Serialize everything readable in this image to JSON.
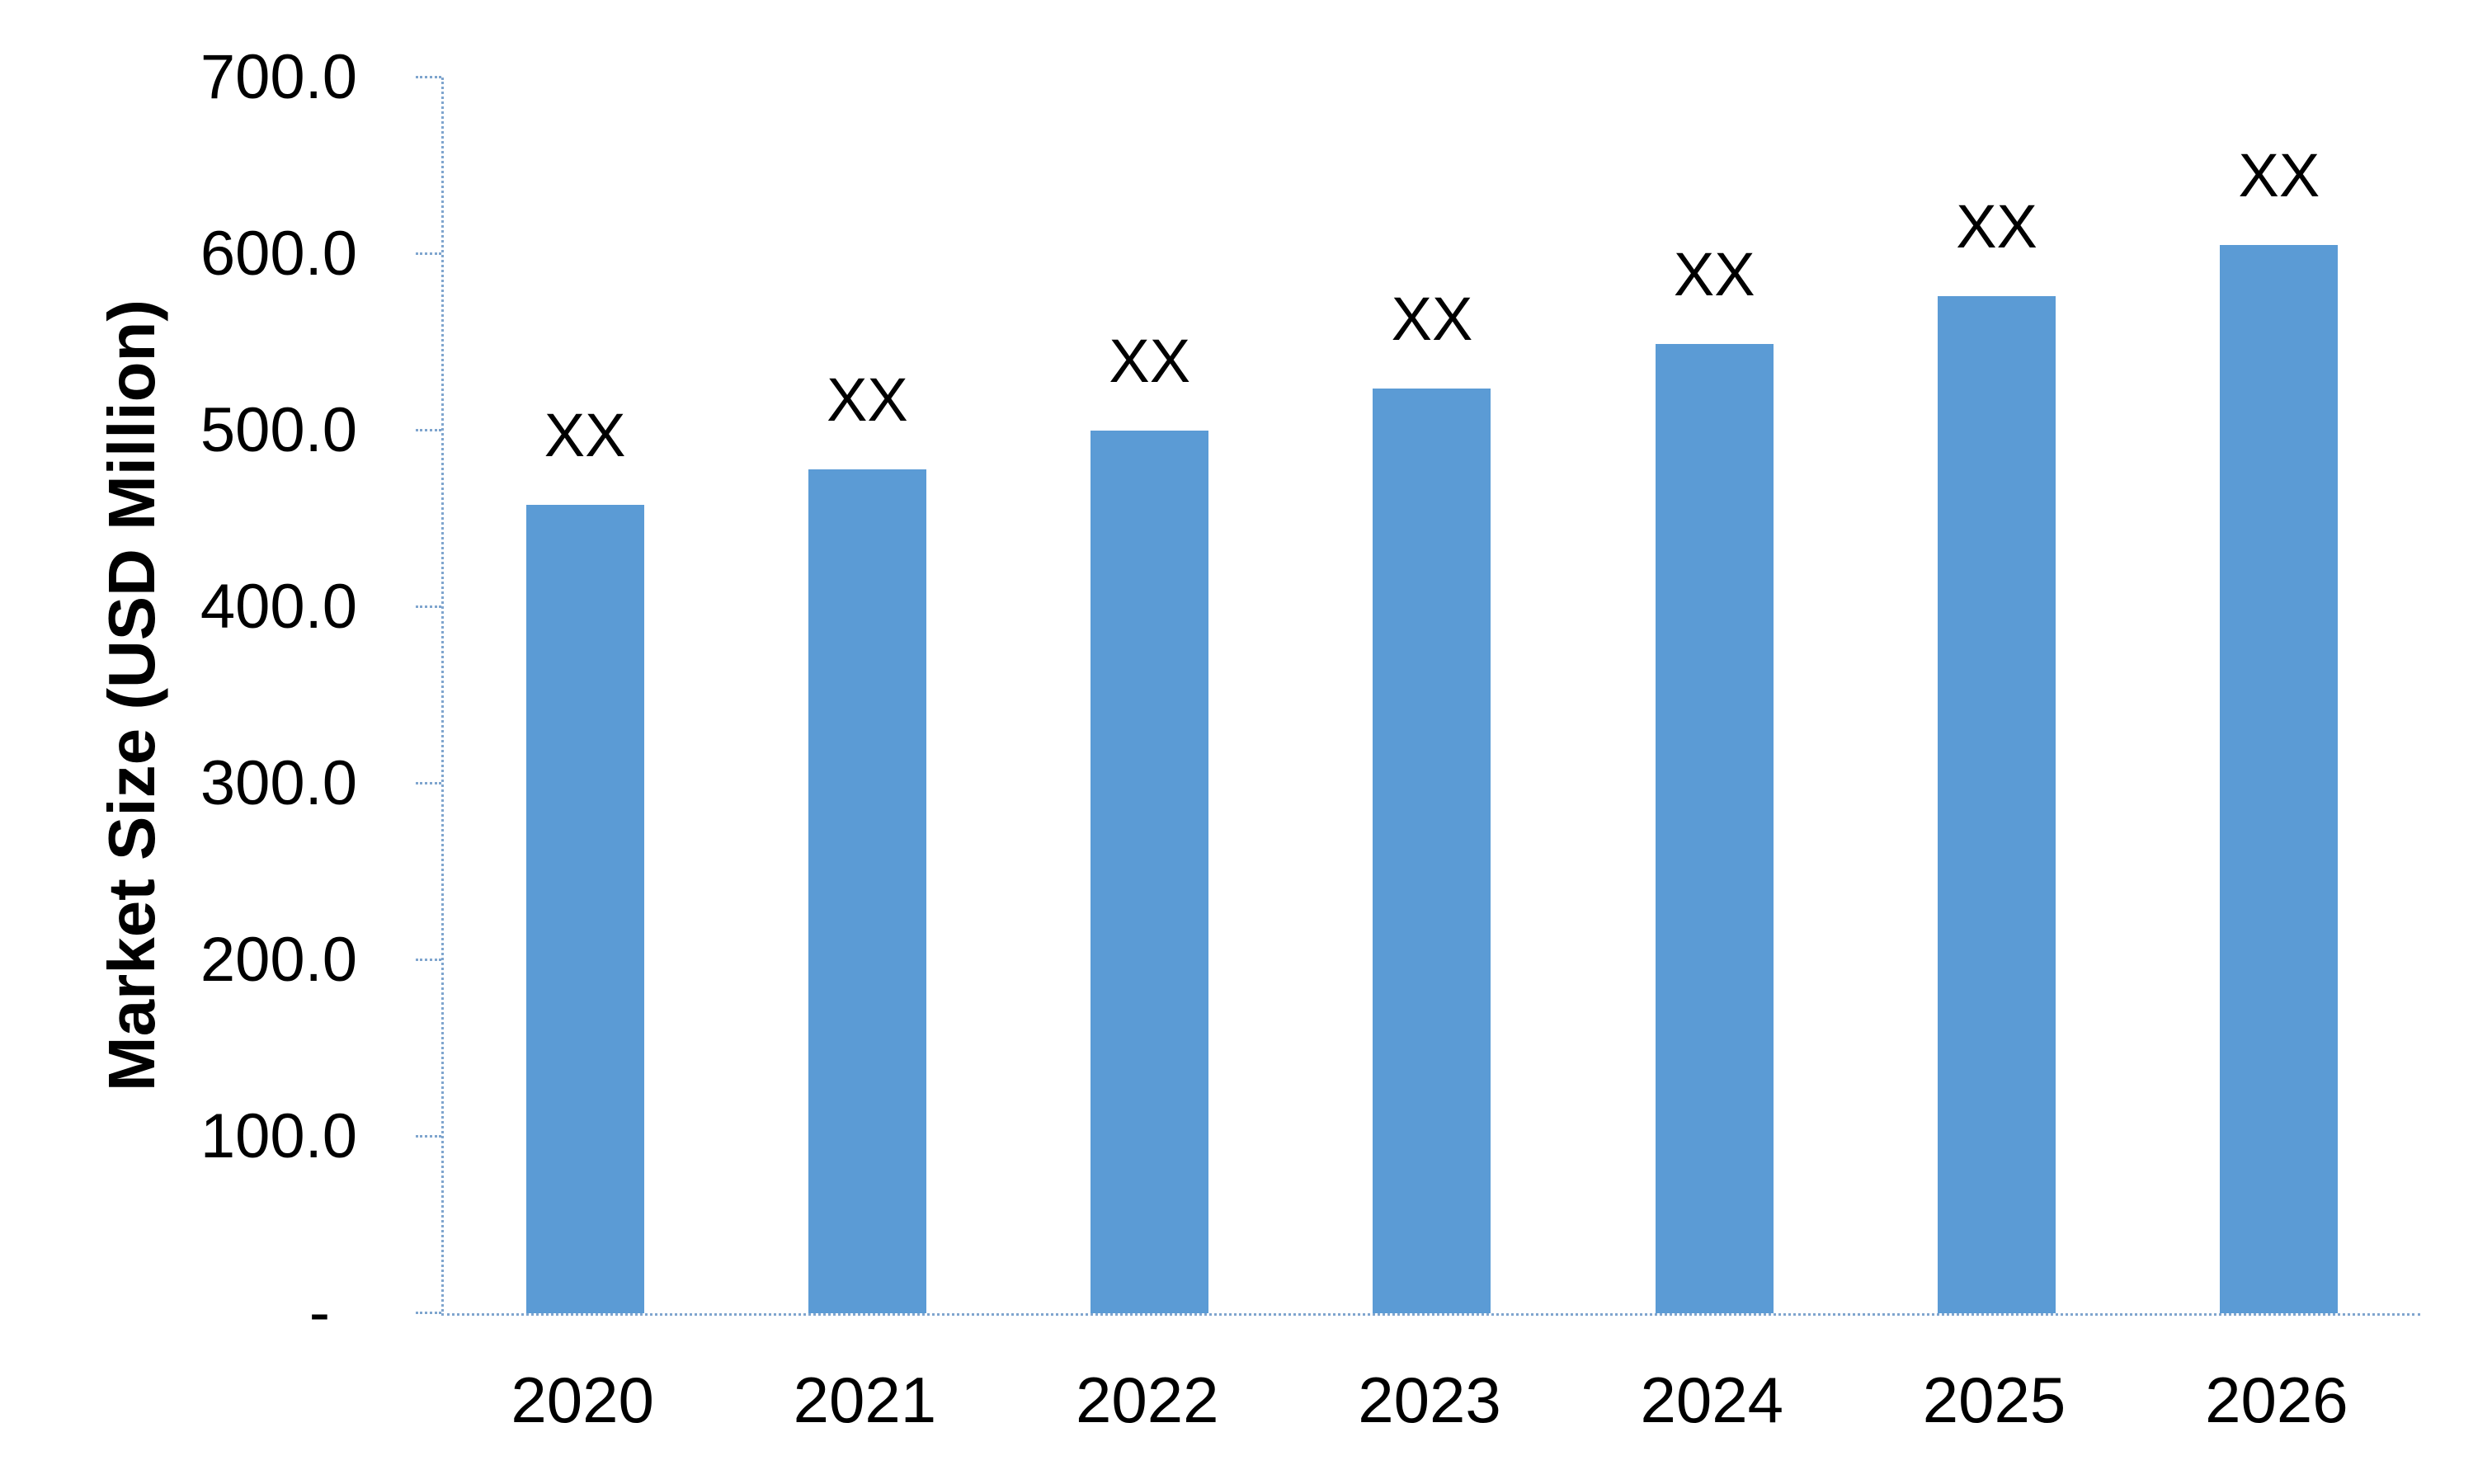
{
  "chart_data": {
    "type": "bar",
    "title": "",
    "xlabel": "",
    "ylabel": "Market Size (USD Million)",
    "categories": [
      "2020",
      "2021",
      "2022",
      "2023",
      "2024",
      "2025",
      "2026"
    ],
    "values": [
      458,
      478,
      500,
      524,
      549,
      576,
      605
    ],
    "bar_labels": [
      "XX",
      "XX",
      "XX",
      "XX",
      "XX",
      "XX",
      "XX"
    ],
    "ylim": [
      0,
      700
    ],
    "ytick_interval": 100,
    "ytick_labels": [
      "700.0",
      "600.0",
      "500.0",
      "400.0",
      "300.0",
      "200.0",
      "100.0",
      "-"
    ],
    "legend_position": "none",
    "grid": false,
    "bar_color": "#5B9BD5",
    "axis_color": "#7FA5CE",
    "text_color": "#000000"
  }
}
